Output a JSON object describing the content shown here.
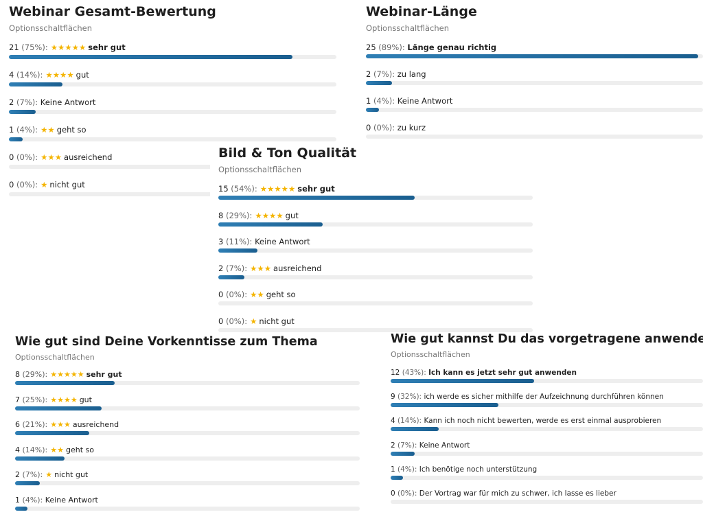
{
  "colors": {
    "bar_fill": "#2a74a8",
    "bar_track": "#eeeeee",
    "star": "#f4b400"
  },
  "panels": [
    {
      "title": "Webinar Gesamt-Bewertung",
      "subtitle": "Optionsschaltflächen",
      "rows": [
        {
          "count": "21",
          "pct": "(75%):",
          "stars": "★★★★★",
          "text": "sehr gut",
          "bold": true,
          "ratio": 0.866
        },
        {
          "count": "4",
          "pct": "(14%):",
          "stars": "★★★★",
          "text": "gut",
          "bold": false,
          "ratio": 0.164
        },
        {
          "count": "2",
          "pct": "(7%):",
          "stars": "",
          "text": "Keine Antwort",
          "bold": false,
          "ratio": 0.082
        },
        {
          "count": "1",
          "pct": "(4%):",
          "stars": "★★",
          "text": "geht so",
          "bold": false,
          "ratio": 0.042
        },
        {
          "count": "0",
          "pct": "(0%):",
          "stars": "★★★",
          "text": "ausreichend",
          "bold": false,
          "ratio": 0
        },
        {
          "count": "0",
          "pct": "(0%):",
          "stars": "★",
          "text": "nicht gut",
          "bold": false,
          "ratio": 0
        }
      ]
    },
    {
      "title": "Webinar-Länge",
      "subtitle": "Optionsschaltflächen",
      "rows": [
        {
          "count": "25",
          "pct": "(89%):",
          "stars": "",
          "text": "Länge genau richtig",
          "bold": true,
          "ratio": 0.985
        },
        {
          "count": "2",
          "pct": "(7%):",
          "stars": "",
          "text": "zu lang",
          "bold": false,
          "ratio": 0.078
        },
        {
          "count": "1",
          "pct": "(4%):",
          "stars": "",
          "text": "Keine Antwort",
          "bold": false,
          "ratio": 0.039
        },
        {
          "count": "0",
          "pct": "(0%):",
          "stars": "",
          "text": "zu kurz",
          "bold": false,
          "ratio": 0
        }
      ]
    },
    {
      "title": "Bild & Ton Qualität",
      "subtitle": "Optionsschaltflächen",
      "rows": [
        {
          "count": "15",
          "pct": "(54%):",
          "stars": "★★★★★",
          "text": "sehr gut",
          "bold": true,
          "ratio": 0.624
        },
        {
          "count": "8",
          "pct": "(29%):",
          "stars": "★★★★",
          "text": "gut",
          "bold": false,
          "ratio": 0.332
        },
        {
          "count": "3",
          "pct": "(11%):",
          "stars": "",
          "text": "Keine Antwort",
          "bold": false,
          "ratio": 0.124
        },
        {
          "count": "2",
          "pct": "(7%):",
          "stars": "★★★",
          "text": "ausreichend",
          "bold": false,
          "ratio": 0.083
        },
        {
          "count": "0",
          "pct": "(0%):",
          "stars": "★★",
          "text": "geht so",
          "bold": false,
          "ratio": 0
        },
        {
          "count": "0",
          "pct": "(0%):",
          "stars": "★",
          "text": "nicht gut",
          "bold": false,
          "ratio": 0
        }
      ]
    },
    {
      "title": "Wie gut sind Deine Vorkenntisse zum Thema",
      "subtitle": "Optionsschaltflächen",
      "rows": [
        {
          "count": "8",
          "pct": "(29%):",
          "stars": "★★★★★",
          "text": "sehr gut",
          "bold": true,
          "ratio": 0.288
        },
        {
          "count": "7",
          "pct": "(25%):",
          "stars": "★★★★",
          "text": "gut",
          "bold": false,
          "ratio": 0.251
        },
        {
          "count": "6",
          "pct": "(21%):",
          "stars": "★★★",
          "text": "ausreichend",
          "bold": false,
          "ratio": 0.215
        },
        {
          "count": "4",
          "pct": "(14%):",
          "stars": "★★",
          "text": "geht so",
          "bold": false,
          "ratio": 0.143
        },
        {
          "count": "2",
          "pct": "(7%):",
          "stars": "★",
          "text": "nicht gut",
          "bold": false,
          "ratio": 0.072
        },
        {
          "count": "1",
          "pct": "(4%):",
          "stars": "",
          "text": "Keine Antwort",
          "bold": false,
          "ratio": 0.036
        }
      ]
    },
    {
      "title": "Wie gut kannst Du das vorgetragene anwenden",
      "subtitle": "Optionsschaltflächen",
      "rows": [
        {
          "count": "12",
          "pct": "(43%):",
          "stars": "",
          "text": "Ich kann es jetzt sehr gut anwenden",
          "bold": true,
          "ratio": 0.46
        },
        {
          "count": "9",
          "pct": "(32%):",
          "stars": "",
          "text": "ich werde es sicher mithilfe der Aufzeichnung durchführen können",
          "bold": false,
          "ratio": 0.345
        },
        {
          "count": "4",
          "pct": "(14%):",
          "stars": "",
          "text": "Kann ich noch nicht bewerten, werde es erst einmal ausprobieren",
          "bold": false,
          "ratio": 0.154
        },
        {
          "count": "2",
          "pct": "(7%):",
          "stars": "",
          "text": "Keine Antwort",
          "bold": false,
          "ratio": 0.077
        },
        {
          "count": "1",
          "pct": "(4%):",
          "stars": "",
          "text": "Ich benötige noch unterstützung",
          "bold": false,
          "ratio": 0.04
        },
        {
          "count": "0",
          "pct": "(0%):",
          "stars": "",
          "text": "Der Vortrag war für mich zu schwer, ich lasse es lieber",
          "bold": false,
          "ratio": 0
        }
      ]
    }
  ]
}
